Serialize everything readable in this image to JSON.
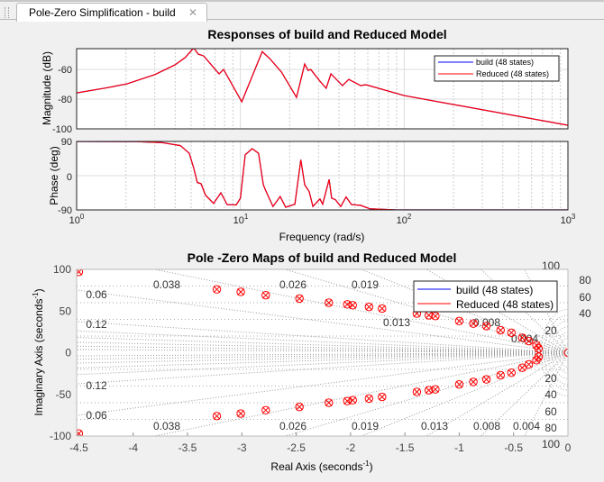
{
  "tab": {
    "title": "Pole-Zero Simplification - build",
    "close_icon": "close-icon"
  },
  "colors": {
    "build": "#0000ff",
    "reduced": "#ff0000"
  },
  "chart_data": [
    {
      "type": "line",
      "title": "Responses of build and Reduced Model",
      "xlabel": "Frequency  (rad/s)",
      "xscale": "log",
      "xlim": [
        1,
        1000
      ],
      "xticks": [
        "10^0",
        "10^1",
        "10^2",
        "10^3"
      ],
      "grid": true,
      "legend": {
        "placement": "top-right",
        "entries": [
          "build (48 states)",
          "Reduced (48 states)"
        ]
      },
      "panels": [
        {
          "ylabel": "Magnitude (dB)",
          "ylim": [
            -100,
            -46
          ],
          "yticks": [
            "-60",
            "-80",
            "-100"
          ],
          "x": [
            1,
            1.5,
            2.03,
            3,
            3.98,
            4.6,
            5.19,
            5.53,
            5.97,
            7.41,
            7.89,
            10.2,
            13.6,
            15.1,
            17.8,
            22,
            24.7,
            25.9,
            26.9,
            30.6,
            33.4,
            35.7,
            38,
            42,
            45.9,
            54.2,
            58.4,
            100,
            1000
          ],
          "series": [
            {
              "name": "build (48 states)",
              "values": [
                -75.8,
                -72.5,
                -69.7,
                -63.5,
                -57,
                -52,
                -45.5,
                -49.7,
                -50.9,
                -63,
                -60,
                -81.8,
                -48,
                -52.7,
                -61.8,
                -78.8,
                -56.4,
                -60.6,
                -60,
                -67.9,
                -72.7,
                -63,
                -66,
                -70.9,
                -66.7,
                -70.9,
                -70.3,
                -77.6,
                -97.6
              ]
            },
            {
              "name": "Reduced (48 states)",
              "values": [
                -75.8,
                -72.5,
                -69.7,
                -63.5,
                -57,
                -52,
                -45.5,
                -49.7,
                -50.9,
                -63,
                -60,
                -81.8,
                -48,
                -52.7,
                -61.8,
                -78.8,
                -56.4,
                -60.6,
                -60,
                -67.9,
                -72.7,
                -63,
                -66,
                -70.9,
                -66.7,
                -70.9,
                -70.3,
                -77.6,
                -97.6
              ]
            }
          ]
        },
        {
          "ylabel": "Phase (deg)",
          "ylim": [
            -90,
            90
          ],
          "yticks": [
            "90",
            "0",
            "-90"
          ],
          "x": [
            1,
            2.28,
            3.33,
            4.3,
            4.87,
            5.19,
            5.46,
            5.75,
            6.12,
            6.86,
            7.6,
            8.3,
            9.42,
            10,
            10.7,
            11.8,
            12.9,
            13.8,
            14.3,
            15.8,
            17.5,
            18.9,
            21.5,
            23.4,
            24.7,
            26.3,
            27.7,
            30.6,
            31.8,
            34.8,
            36.1,
            38,
            41,
            44.2,
            47.7,
            54.2,
            61.5,
            89.9,
            1000
          ],
          "series": [
            {
              "name": "build (48 states)",
              "values": [
                90,
                89.5,
                87,
                79,
                59,
                20,
                -18,
                -21,
                -51,
                -73,
                -45,
                -76,
                -77,
                -59,
                55,
                71,
                59,
                -24,
                -40,
                -81,
                -55,
                -83,
                -75,
                42,
                -24,
                -42,
                -81,
                -61,
                -75,
                -10,
                -59,
                -63,
                -81,
                -56,
                -76,
                -78,
                -87,
                -90,
                -90
              ]
            },
            {
              "name": "Reduced (48 states)",
              "values": [
                90,
                89.5,
                87,
                79,
                59,
                20,
                -18,
                -21,
                -51,
                -73,
                -45,
                -76,
                -77,
                -59,
                55,
                71,
                59,
                -24,
                -40,
                -81,
                -55,
                -83,
                -75,
                42,
                -24,
                -42,
                -81,
                -61,
                -75,
                -10,
                -59,
                -63,
                -81,
                -56,
                -76,
                -78,
                -87,
                -90,
                -90
              ]
            }
          ]
        }
      ]
    },
    {
      "type": "scatter",
      "title": "Pole -Zero Maps of build and Reduced Model",
      "xlabel": "Real Axis (seconds",
      "ylabel": "Imaginary Axis (seconds",
      "unit_exponent": "-1",
      "xlim": [
        -4.52,
        0
      ],
      "ylim": [
        -100,
        100
      ],
      "xticks": [
        "-4.5",
        "-4",
        "-3.5",
        "-3",
        "-2.5",
        "-2",
        "-1.5",
        "-1",
        "-0.5",
        "0"
      ],
      "yticks": [
        "100",
        "50",
        "0",
        "-50",
        "-100"
      ],
      "grid": "damping/natural-frequency",
      "damping_labels": [
        "0.038",
        "0.026",
        "0.019",
        "0.013",
        "0.008",
        "0.004"
      ],
      "damping_labels_left": [
        "0.06",
        "0.12"
      ],
      "frequency_labels": [
        "100",
        "80",
        "60",
        "40",
        "20"
      ],
      "legend": {
        "placement": "top-right",
        "entries": [
          "build (48 states)",
          "Reduced (48 states)"
        ]
      },
      "poles_upper": [
        [
          -4.5,
          97
        ],
        [
          -3.23,
          76
        ],
        [
          -3.01,
          73
        ],
        [
          -2.78,
          69
        ],
        [
          -2.47,
          65
        ],
        [
          -2.2,
          60
        ],
        [
          -2.03,
          58
        ],
        [
          -1.98,
          57
        ],
        [
          -1.83,
          55
        ],
        [
          -1.71,
          53
        ],
        [
          -1.39,
          47
        ],
        [
          -1.28,
          45
        ],
        [
          -1.22,
          44
        ],
        [
          -1.0,
          38
        ],
        [
          -0.87,
          35
        ],
        [
          -0.75,
          32
        ],
        [
          -0.62,
          27
        ],
        [
          -0.52,
          24
        ],
        [
          -0.42,
          18
        ],
        [
          -0.36,
          14
        ],
        [
          -0.29,
          9
        ],
        [
          -0.27,
          5
        ]
      ],
      "zeros_extra": [
        [
          0,
          0
        ]
      ]
    }
  ]
}
